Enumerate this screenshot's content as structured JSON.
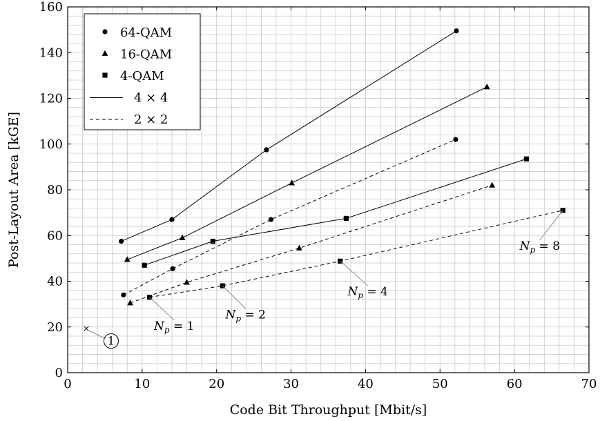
{
  "chart_data": {
    "type": "scatter",
    "xlabel": "Code Bit Throughput [Mbit/s]",
    "ylabel": "Post-Layout Area [kGE]",
    "xlim": [
      0,
      70
    ],
    "ylim": [
      0,
      160
    ],
    "xticks": [
      0,
      10,
      20,
      30,
      40,
      50,
      60,
      70
    ],
    "yticks": [
      0,
      20,
      40,
      60,
      80,
      100,
      120,
      140,
      160
    ],
    "grid": "on (minor)",
    "legend_position": "top-left",
    "legend": [
      {
        "label": "64-QAM",
        "marker": "circle"
      },
      {
        "label": "16-QAM",
        "marker": "triangle"
      },
      {
        "label": "4-QAM",
        "marker": "square"
      },
      {
        "label": "4 × 4",
        "line": "solid"
      },
      {
        "label": "2 × 2",
        "line": "dashed"
      }
    ],
    "series": [
      {
        "name": "64-QAM 4 × 4",
        "marker": "circle",
        "line": "solid",
        "x": [
          7.2,
          14.0,
          26.7,
          52.2
        ],
        "y": [
          57.5,
          67.0,
          97.5,
          149.5
        ]
      },
      {
        "name": "16-QAM 4 × 4",
        "marker": "triangle",
        "line": "solid",
        "x": [
          8.0,
          15.4,
          30.1,
          56.3
        ],
        "y": [
          49.5,
          59.0,
          83.0,
          125.0
        ]
      },
      {
        "name": "4-QAM 4 × 4",
        "marker": "square",
        "line": "solid",
        "x": [
          10.3,
          19.5,
          37.4,
          61.6
        ],
        "y": [
          47.0,
          57.5,
          67.5,
          93.5
        ]
      },
      {
        "name": "64-QAM 2 × 2",
        "marker": "circle",
        "line": "dashed",
        "x": [
          7.5,
          14.1,
          27.3,
          52.1
        ],
        "y": [
          34.0,
          45.5,
          67.0,
          102.0
        ]
      },
      {
        "name": "16-QAM 2 × 2",
        "marker": "triangle",
        "line": "dashed",
        "x": [
          8.4,
          16.0,
          31.1,
          57.0
        ],
        "y": [
          30.5,
          39.5,
          54.5,
          82.0
        ]
      },
      {
        "name": "4-QAM 2 × 2",
        "marker": "square",
        "line": "dashed",
        "x": [
          11.0,
          20.8,
          36.6,
          66.5
        ],
        "y": [
          33.0,
          38.0,
          48.8,
          71.0
        ]
      }
    ],
    "extra_point": {
      "x": 2.5,
      "y": 19.3,
      "marker": "x",
      "label": "1"
    },
    "annotations": [
      {
        "text_main": "N",
        "text_sub": "p",
        "text_rest": " = 1",
        "target": [
          11.0,
          33.0
        ],
        "label_at": [
          14.3,
          23.0
        ]
      },
      {
        "text_main": "N",
        "text_sub": "p",
        "text_rest": " = 2",
        "target": [
          20.8,
          38.0
        ],
        "label_at": [
          23.9,
          28.0
        ]
      },
      {
        "text_main": "N",
        "text_sub": "p",
        "text_rest": " = 4",
        "target": [
          36.6,
          48.8
        ],
        "label_at": [
          40.3,
          38.0
        ]
      },
      {
        "text_main": "N",
        "text_sub": "p",
        "text_rest": " = 8",
        "target": [
          66.5,
          71.0
        ],
        "label_at": [
          63.4,
          58.0
        ]
      }
    ]
  }
}
